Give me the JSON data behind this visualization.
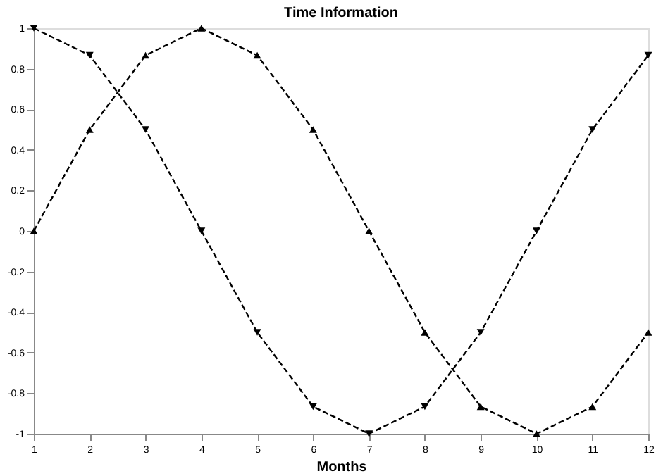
{
  "chart_data": {
    "type": "line",
    "title": "Time Information",
    "xlabel": "Months",
    "x": [
      1,
      2,
      3,
      4,
      5,
      6,
      7,
      8,
      9,
      10,
      11,
      12
    ],
    "series": [
      {
        "color": "#000000",
        "marker": "triangle-up",
        "values": [
          0,
          0.5,
          0.866,
          1,
          0.866,
          0.5,
          0,
          -0.5,
          -0.866,
          -1,
          -0.866,
          -0.5
        ]
      },
      {
        "color": "#000000",
        "marker": "triangle-down",
        "values": [
          1,
          0.866,
          0.5,
          0,
          -0.5,
          -0.866,
          -1,
          -0.866,
          -0.5,
          0,
          0.5,
          0.866
        ]
      }
    ],
    "xlim": [
      1,
      12
    ],
    "xticks": [
      1,
      2,
      3,
      4,
      5,
      6,
      7,
      8,
      9,
      10,
      11,
      12
    ],
    "ylim": [
      -1,
      1
    ],
    "yticks": [
      -1,
      -0.8,
      -0.6,
      -0.4,
      -0.2,
      0,
      0.2,
      0.4,
      0.6,
      0.8,
      1
    ],
    "line_style": "dashed",
    "grid": false,
    "legend": false
  }
}
